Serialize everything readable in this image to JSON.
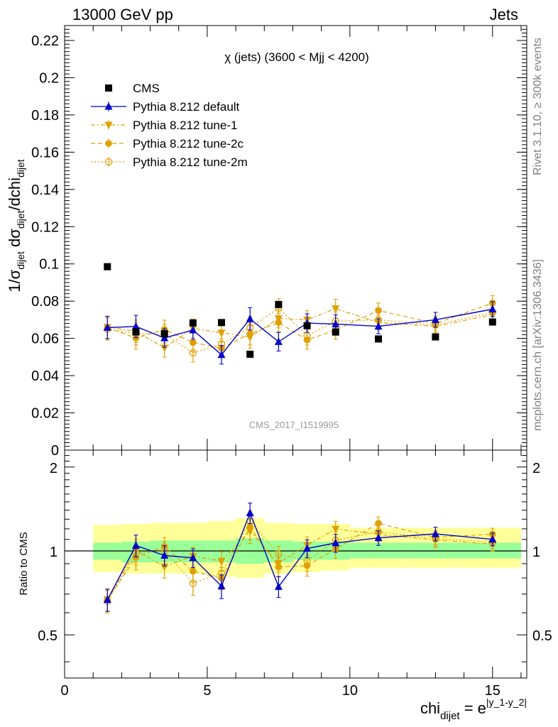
{
  "header": {
    "left": "13000 GeV pp",
    "right": "Jets",
    "side_top": "Rivet 3.1.10, ≥ 300k events",
    "side_bottom": "mcplots.cern.ch [arXiv:1306.3436]"
  },
  "plot_title": "χ (jets) (3600 < Mjj < 4200)",
  "watermark": "CMS_2017_I1519995",
  "main_ylabel": {
    "a": "1/σ",
    "b": "dijet",
    "c": " dσ",
    "d": "dijet",
    "e": "/dchi",
    "f": "dijet"
  },
  "ratio_ylabel": "Ratio to CMS",
  "xlabel": {
    "a": "chi",
    "b": "dijet",
    "c": " = e",
    "d": "|y_1-y_2|"
  },
  "legend": [
    "CMS",
    "Pythia 8.212 default",
    "Pythia 8.212 tune-1",
    "Pythia 8.212 tune-2c",
    "Pythia 8.212 tune-2m"
  ],
  "colors": {
    "cms": "#000000",
    "default": "#0000cc",
    "tunes": "#e0a000",
    "band_inner": "#99ff99",
    "band_outer": "#ffff99"
  },
  "chart_data": {
    "type": "scatter",
    "x_range": [
      0,
      16.2
    ],
    "main_ylim": [
      0,
      0.228
    ],
    "ratio_ylim": [
      0.35,
      2.3
    ],
    "main_yticks": [
      "0.22",
      "0.2",
      "0.18",
      "0.16",
      "0.14",
      "0.12",
      "0.1",
      "0.08",
      "0.06",
      "0.04",
      "0.02",
      "0"
    ],
    "ratio_yticks": [
      "2",
      "1",
      "0.5"
    ],
    "xticks": [
      "0",
      "5",
      "10",
      "15"
    ],
    "bins": [
      [
        1,
        2
      ],
      [
        2,
        3
      ],
      [
        3,
        4
      ],
      [
        4,
        5
      ],
      [
        5,
        6
      ],
      [
        6,
        7
      ],
      [
        7,
        8
      ],
      [
        8,
        9
      ],
      [
        9,
        10
      ],
      [
        10,
        12
      ],
      [
        12,
        14
      ],
      [
        14,
        16
      ]
    ],
    "x": [
      1.5,
      2.5,
      3.5,
      4.5,
      5.5,
      6.5,
      7.5,
      8.5,
      9.5,
      11,
      13,
      15
    ],
    "cms": [
      0.0985,
      0.0635,
      0.0625,
      0.0683,
      0.0685,
      0.0515,
      0.0782,
      0.0668,
      0.0634,
      0.0597,
      0.0608,
      0.0688
    ],
    "band_inner": [
      [
        0.93,
        1.07
      ],
      [
        0.91,
        1.08
      ],
      [
        0.91,
        1.09
      ],
      [
        0.91,
        1.09
      ],
      [
        0.91,
        1.09
      ],
      [
        0.9,
        1.11
      ],
      [
        0.91,
        1.09
      ],
      [
        0.93,
        1.08
      ],
      [
        0.93,
        1.08
      ],
      [
        0.94,
        1.07
      ],
      [
        0.94,
        1.07
      ],
      [
        0.94,
        1.07
      ]
    ],
    "band_outer": [
      [
        0.84,
        1.24
      ],
      [
        0.83,
        1.25
      ],
      [
        0.83,
        1.26
      ],
      [
        0.83,
        1.26
      ],
      [
        0.81,
        1.28
      ],
      [
        0.8,
        1.31
      ],
      [
        0.83,
        1.26
      ],
      [
        0.84,
        1.25
      ],
      [
        0.85,
        1.25
      ],
      [
        0.87,
        1.21
      ],
      [
        0.87,
        1.21
      ],
      [
        0.87,
        1.21
      ]
    ],
    "series": [
      {
        "name": "Pythia 8.212 default",
        "y": [
          0.0658,
          0.0664,
          0.0602,
          0.0645,
          0.0512,
          0.0705,
          0.0582,
          0.0682,
          0.0677,
          0.0665,
          0.07,
          0.0757
        ],
        "err": [
          0.006,
          0.006,
          0.005,
          0.005,
          0.005,
          0.006,
          0.005,
          0.005,
          0.005,
          0.004,
          0.004,
          0.004
        ]
      },
      {
        "name": "Pythia 8.212 tune-1",
        "y": [
          0.066,
          0.0638,
          0.0549,
          0.0654,
          0.063,
          0.0607,
          0.0707,
          0.07,
          0.076,
          0.0685,
          0.0665,
          0.0728
        ],
        "err": [
          0.006,
          0.006,
          0.005,
          0.005,
          0.005,
          0.006,
          0.005,
          0.005,
          0.005,
          0.004,
          0.004,
          0.004
        ]
      },
      {
        "name": "Pythia 8.212 tune-2c",
        "y": [
          0.0658,
          0.0602,
          0.0648,
          0.0578,
          0.0547,
          0.0625,
          0.0685,
          0.0592,
          0.0645,
          0.075,
          0.068,
          0.079
        ],
        "err": [
          0.006,
          0.006,
          0.005,
          0.005,
          0.005,
          0.006,
          0.005,
          0.005,
          0.005,
          0.004,
          0.004,
          0.004
        ]
      },
      {
        "name": "Pythia 8.212 tune-2m",
        "y": [
          0.065,
          0.0625,
          0.0625,
          0.0523,
          0.057,
          0.0658,
          0.0762,
          0.0615,
          0.0692,
          0.07,
          0.0672,
          0.074
        ],
        "err": [
          0.006,
          0.006,
          0.005,
          0.005,
          0.005,
          0.006,
          0.005,
          0.005,
          0.005,
          0.004,
          0.004,
          0.004
        ]
      }
    ]
  }
}
